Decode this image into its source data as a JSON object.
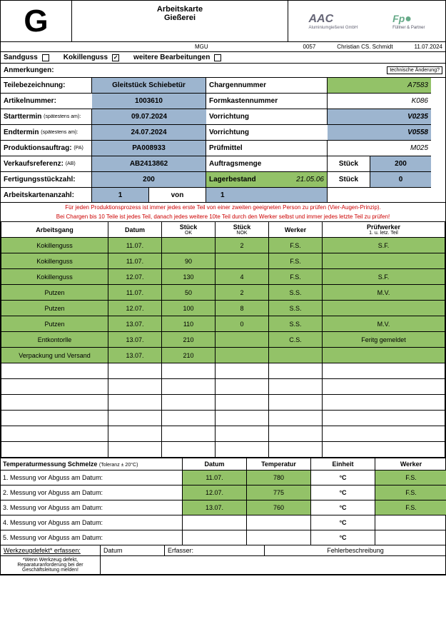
{
  "header": {
    "letter": "G",
    "title1": "Arbeitskarte",
    "title2": "Gießerei",
    "logo1": "AAC",
    "logo1_sub": "Aluminiumgießerei GmbH",
    "logo2": "Fp",
    "logo2_sub": "Füllner & Partner"
  },
  "meta": {
    "m1": "MGU",
    "m2": "0057",
    "m3": "Christian CS. Schmidt",
    "m4": "11.07.2024"
  },
  "guss": {
    "sand": "Sandguss",
    "kokillen": "Kokillenguss",
    "weitere": "weitere Bearbeitungen"
  },
  "anm": {
    "label": "Anmerkungen:",
    "right": "technische Änderung?"
  },
  "info": {
    "teile_lbl": "Teilebezeichnung:",
    "teile_val": "Gleitstück Schiebetür",
    "chargen_lbl": "Chargennummer",
    "chargen_val": "A7583",
    "artikel_lbl": "Artikelnummer:",
    "artikel_val": "1003610",
    "formk_lbl": "Formkastennummer",
    "formk_val": "K086",
    "start_lbl": "Starttermin",
    "start_sub": "(spätestens am):",
    "start_val": "09.07.2024",
    "vor1_lbl": "Vorrichtung",
    "vor1_val": "V0235",
    "end_lbl": "Endtermin",
    "end_sub": "(spätestens am):",
    "end_val": "24.07.2024",
    "vor2_lbl": "Vorrichtung",
    "vor2_val": "V0558",
    "prod_lbl": "Produktionsauftrag:",
    "prod_sub": "(PA)",
    "prod_val": "PA008933",
    "pruef_lbl": "Prüfmittel",
    "pruef_val": "M025",
    "verk_lbl": "Verkaufsreferenz:",
    "verk_sub": "(AB)",
    "verk_val": "AB2413862",
    "auftr_lbl": "Auftragsmenge",
    "stueck": "Stück",
    "auftr_val": "200",
    "fert_lbl": "Fertigungsstückzahl:",
    "fert_val": "200",
    "lager_lbl": "Lagerbestand",
    "lager_date": "21.05.06",
    "lager_val": "0",
    "ak_lbl": "Arbeitskartenanzahl:",
    "ak_n": "1",
    "ak_von": "von",
    "ak_m": "1"
  },
  "note1": "Für jeden Produktionsprozess ist immer jedes erste Teil von einer zweiten geeigneten Person zu prüfen (Vier-Augen-Prinzip).",
  "note2": "Bei Chargen bis 10 Teile ist jedes Teil, danach jedes weitere 10te Teil durch den Werker selbst und immer jedes letzte Teil zu prüfen!",
  "thead": {
    "c1": "Arbeitsgang",
    "c2": "Datum",
    "c3": "Stück",
    "c3s": "OK",
    "c4": "Stück",
    "c4s": "NOK",
    "c5": "Werker",
    "c6": "Prüfwerker",
    "c6s": "1. u. letz. Teil"
  },
  "rows": [
    {
      "g": 1,
      "a": "Kokillenguss",
      "d": "11.07.",
      "ok": "",
      "nok": "2",
      "w": "F.S.",
      "p": "S.F."
    },
    {
      "g": 1,
      "a": "Kokillenguss",
      "d": "11.07.",
      "ok": "90",
      "nok": "",
      "w": "F.S.",
      "p": ""
    },
    {
      "g": 1,
      "a": "Kokillenguss",
      "d": "12.07.",
      "ok": "130",
      "nok": "4",
      "w": "F.S.",
      "p": "S.F."
    },
    {
      "g": 1,
      "a": "Putzen",
      "d": "11.07.",
      "ok": "50",
      "nok": "2",
      "w": "S.S.",
      "p": "M.V."
    },
    {
      "g": 1,
      "a": "Putzen",
      "d": "12.07.",
      "ok": "100",
      "nok": "8",
      "w": "S.S.",
      "p": ""
    },
    {
      "g": 1,
      "a": "Putzen",
      "d": "13.07.",
      "ok": "110",
      "nok": "0",
      "w": "S.S.",
      "p": "M.V."
    },
    {
      "g": 1,
      "a": "Entkontorlle",
      "d": "13.07.",
      "ok": "210",
      "nok": "",
      "w": "C.S.",
      "p": "Feritg gemeldet"
    },
    {
      "g": 1,
      "a": "Verpackung und Versand",
      "d": "13.07.",
      "ok": "210",
      "nok": "",
      "w": "",
      "p": ""
    },
    {
      "g": 0,
      "a": "",
      "d": "",
      "ok": "",
      "nok": "",
      "w": "",
      "p": ""
    },
    {
      "g": 0,
      "a": "",
      "d": "",
      "ok": "",
      "nok": "",
      "w": "",
      "p": ""
    },
    {
      "g": 0,
      "a": "",
      "d": "",
      "ok": "",
      "nok": "",
      "w": "",
      "p": ""
    },
    {
      "g": 0,
      "a": "",
      "d": "",
      "ok": "",
      "nok": "",
      "w": "",
      "p": ""
    },
    {
      "g": 0,
      "a": "",
      "d": "",
      "ok": "",
      "nok": "",
      "w": "",
      "p": ""
    },
    {
      "g": 0,
      "a": "",
      "d": "",
      "ok": "",
      "nok": "",
      "w": "",
      "p": ""
    }
  ],
  "temp_hdr": {
    "t": "Temperaturmessung Schmelze",
    "tol": "(Toleranz ± 20°C)",
    "c1": "Datum",
    "c2": "Temperatur",
    "c3": "Einheit",
    "c4": "Werker"
  },
  "temps": [
    {
      "n": "1. Messung vor Abguss am Datum:",
      "d": "11.07.",
      "t": "780",
      "e": "°C",
      "w": "F.S.",
      "g": 1
    },
    {
      "n": "2. Messung vor Abguss am Datum:",
      "d": "12.07.",
      "t": "775",
      "e": "°C",
      "w": "F.S.",
      "g": 1
    },
    {
      "n": "3. Messung vor Abguss am Datum:",
      "d": "13.07.",
      "t": "760",
      "e": "°C",
      "w": "F.S.",
      "g": 1
    },
    {
      "n": "4. Messung vor Abguss am Datum:",
      "d": "",
      "t": "",
      "e": "°C",
      "w": "",
      "g": 0
    },
    {
      "n": "5. Messung vor Abguss am Datum:",
      "d": "",
      "t": "",
      "e": "°C",
      "w": "",
      "g": 0
    }
  ],
  "footer": {
    "f1": "Werkzeugdefekt* erfassen:",
    "f2": "Datum",
    "f3": "Erfasser:",
    "f4": "Fehlerbeschreibung",
    "note": "*Wenn Werkzeug defekt, Reparaturanforderung bei der Geschäftsleitung melden!"
  }
}
